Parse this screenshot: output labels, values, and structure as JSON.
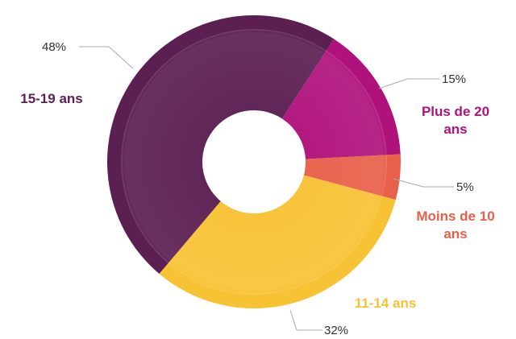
{
  "chart_data": {
    "type": "donut",
    "categories": [
      "Plus de 20 ans",
      "Moins de 10 ans",
      "11-14 ans",
      "15-19 ans"
    ],
    "values": [
      15,
      5,
      32,
      48
    ],
    "value_labels": [
      "15%",
      "5%",
      "32%",
      "48%"
    ],
    "colors": [
      "#b0127c",
      "#e8604a",
      "#f7c234",
      "#5b1f52"
    ]
  }
}
